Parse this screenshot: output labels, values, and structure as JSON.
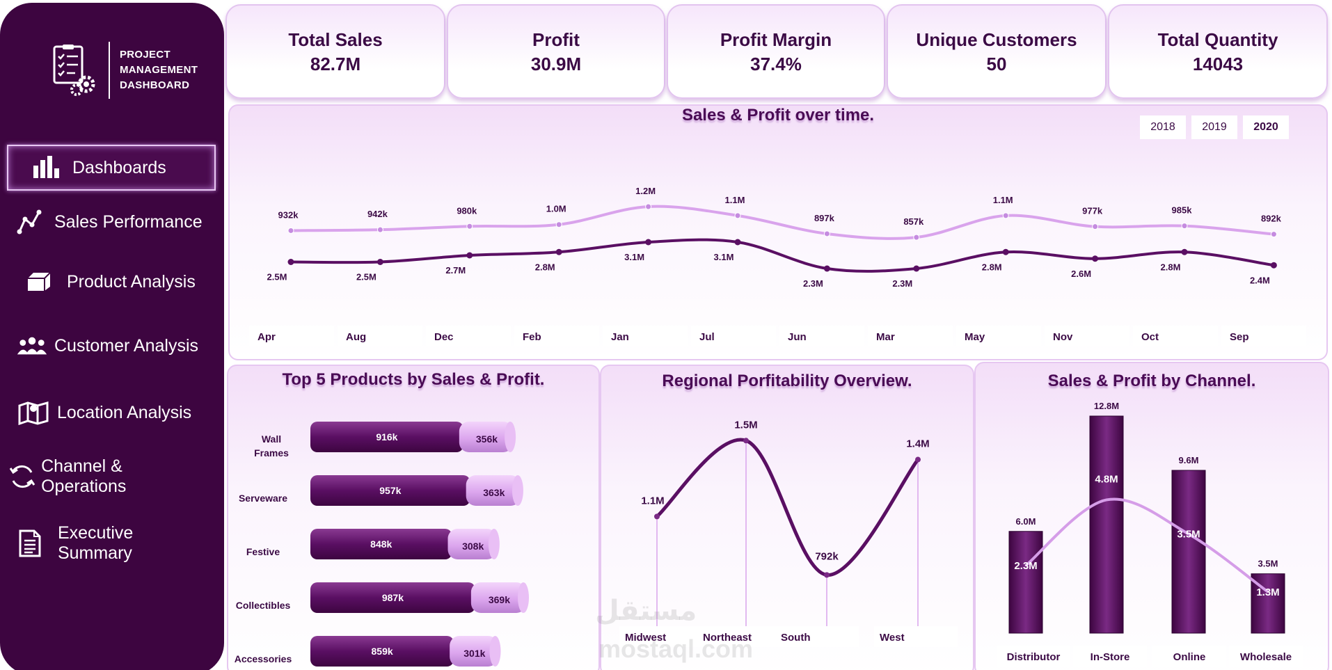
{
  "brand": {
    "line1": "PROJECT",
    "line2": "MANAGEMENT",
    "line3": "DASHBOARD"
  },
  "nav": [
    {
      "label": "Dashboards",
      "icon": "bar-chart-icon",
      "active": true
    },
    {
      "label": "Sales Performance",
      "icon": "line-graph-icon"
    },
    {
      "label": "Product Analysis",
      "icon": "box-icon"
    },
    {
      "label": "Customer Analysis",
      "icon": "users-icon"
    },
    {
      "label": "Location Analysis",
      "icon": "map-icon"
    },
    {
      "label": "Channel & Operations",
      "icon": "refresh-icon"
    },
    {
      "label": "Executive Summary",
      "icon": "document-icon"
    }
  ],
  "kpis": [
    {
      "label": "Total Sales",
      "value": "82.7M"
    },
    {
      "label": "Profit",
      "value": "30.9M"
    },
    {
      "label": "Profit Margin",
      "value": "37.4%"
    },
    {
      "label": "Unique Customers",
      "value": "50"
    },
    {
      "label": "Total Quantity",
      "value": "14043"
    }
  ],
  "years": {
    "y2018": "2018",
    "y2019": "2019",
    "y2020": "2020",
    "selected": "2020"
  },
  "colors": {
    "sidebar": "#3d0540",
    "dark_series": "#5a0f63",
    "light_series": "#d9a3ec"
  },
  "chart_data": [
    {
      "type": "line",
      "title": "Sales & Profit over time.",
      "categories": [
        "Apr",
        "Aug",
        "Dec",
        "Feb",
        "Jan",
        "Jul",
        "Jun",
        "Mar",
        "May",
        "Nov",
        "Oct",
        "Sep"
      ],
      "series": [
        {
          "values": [
            932000,
            942000,
            980000,
            1000000,
            1200000,
            1100000,
            897000,
            857000,
            1100000,
            977000,
            985000,
            892000
          ],
          "labels": [
            "932k",
            "942k",
            "980k",
            "1.0M",
            "1.2M",
            "1.1M",
            "897k",
            "857k",
            "1.1M",
            "977k",
            "985k",
            "892k"
          ]
        },
        {
          "values": [
            2500000,
            2500000,
            2700000,
            2800000,
            3100000,
            3100000,
            2300000,
            2300000,
            2800000,
            2600000,
            2800000,
            2400000
          ],
          "labels": [
            "2.5M",
            "2.5M",
            "2.7M",
            "2.8M",
            "3.1M",
            "3.1M",
            "2.3M",
            "2.3M",
            "2.8M",
            "2.6M",
            "2.8M",
            "2.4M"
          ]
        }
      ]
    },
    {
      "type": "bar",
      "title": "Top 5 Products by Sales & Profit.",
      "categories": [
        "Wall Frames",
        "Serveware",
        "Festive",
        "Collectibles",
        "Accessories"
      ],
      "series": [
        {
          "values": [
            916000,
            957000,
            848000,
            987000,
            859000
          ],
          "labels": [
            "916k",
            "957k",
            "848k",
            "987k",
            "859k"
          ]
        },
        {
          "values": [
            356000,
            363000,
            308000,
            369000,
            301000
          ],
          "labels": [
            "356k",
            "363k",
            "308k",
            "369k",
            "301k"
          ]
        }
      ]
    },
    {
      "type": "line",
      "title": "Regional Porfitability Overview.",
      "categories": [
        "Midwest",
        "Northeast",
        "South",
        "West"
      ],
      "values": [
        1100000,
        1500000,
        792000,
        1400000
      ],
      "labels": [
        "1.1M",
        "1.5M",
        "792k",
        "1.4M"
      ]
    },
    {
      "type": "bar",
      "title": "Sales & Profit by Channel.",
      "categories": [
        "Distributor",
        "In-Store",
        "Online",
        "Wholesale"
      ],
      "series": [
        {
          "values": [
            6000000,
            12800000,
            9600000,
            3500000
          ],
          "labels": [
            "6.0M",
            "12.8M",
            "9.6M",
            "3.5M"
          ]
        },
        {
          "values": [
            2300000,
            4800000,
            3500000,
            1300000
          ],
          "labels": [
            "2.3M",
            "4.8M",
            "3.5M",
            "1.3M"
          ]
        }
      ]
    }
  ],
  "watermark": {
    "arabic": "مستقل",
    "latin": "mostaql.com"
  }
}
